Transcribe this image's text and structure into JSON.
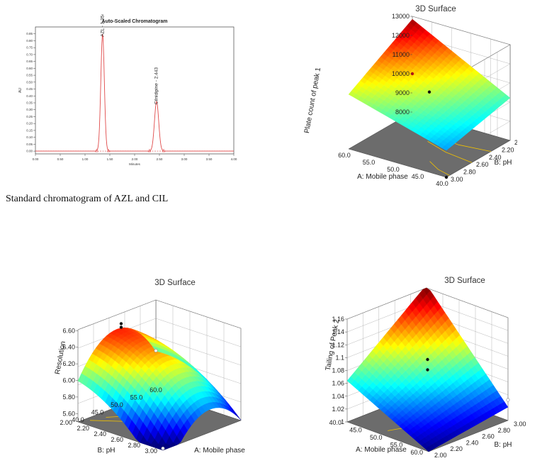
{
  "caption": "Standard chromatogram of AZL and CIL",
  "chart_data": [
    {
      "type": "line",
      "title": "Auto-Scaled Chromatogram",
      "xlabel": "Minutes",
      "ylabel": "AU",
      "xlim": [
        0,
        4
      ],
      "ylim": [
        -0.02,
        0.9
      ],
      "xticks": [
        "0.00",
        "0.50",
        "1.00",
        "1.50",
        "2.00",
        "2.50",
        "3.00",
        "3.50",
        "4.00"
      ],
      "yticks": [
        "0.00",
        "0.05",
        "0.10",
        "0.15",
        "0.20",
        "0.25",
        "0.30",
        "0.35",
        "0.40",
        "0.45",
        "0.50",
        "0.55",
        "0.60",
        "0.65",
        "0.70",
        "0.75",
        "0.80",
        "0.85"
      ],
      "peaks": [
        {
          "label": "AZL - 1.354",
          "x": 1.354,
          "y": 0.85,
          "width": 0.05
        },
        {
          "label": "Cilnidipine - 2.443",
          "x": 2.443,
          "y": 0.36,
          "width": 0.06
        }
      ],
      "line_color": "#e04a4a"
    },
    {
      "type": "surface",
      "title": "3D Surface",
      "zlabel": "Plate count of peak 1",
      "xlabel": "A: Mobile phase",
      "ylabel": "B: pH",
      "zticks": [
        "8000",
        "9000",
        "10000",
        "11000",
        "12000",
        "13000"
      ],
      "xticks": [
        "60.0",
        "55.0",
        "50.0",
        "45.0",
        "40.0"
      ],
      "yticks": [
        "3.00",
        "2.80",
        "2.60",
        "2.40",
        "2.20",
        "2.00"
      ],
      "xlim": [
        40,
        60
      ],
      "ylim": [
        2,
        3
      ],
      "zlim": [
        7500,
        13000
      ],
      "corner_values": {
        "x40_y2": 9500,
        "x60_y2": 12800,
        "x40_y3": 7600,
        "x60_y3": 9800
      },
      "design_points": [
        {
          "x": 50,
          "y": 2.5,
          "z": 10200
        },
        {
          "x": 60,
          "y": 3.0,
          "z": 9700
        },
        {
          "x": 40,
          "y": 3.0,
          "z": 7600
        }
      ]
    },
    {
      "type": "surface",
      "title": "3D Surface",
      "zlabel": "Resolution",
      "xlabel": "A: Mobile phase",
      "ylabel": "B: pH",
      "zticks": [
        "5.60",
        "5.80",
        "6.00",
        "6.20",
        "6.40",
        "6.60"
      ],
      "xticks": [
        "40.0",
        "45.0",
        "50.0",
        "55.0",
        "60.0"
      ],
      "yticks": [
        "2.00",
        "2.20",
        "2.40",
        "2.60",
        "2.80",
        "3.00"
      ],
      "xlim": [
        40,
        60
      ],
      "ylim": [
        2,
        3
      ],
      "zlim": [
        5.5,
        6.6
      ],
      "peak": {
        "x": 50,
        "y": 3.0,
        "z": 6.5
      },
      "design_points": [
        {
          "x": 50,
          "y": 3.0,
          "z": 6.48
        },
        {
          "x": 50,
          "y": 3.0,
          "z": 6.45
        },
        {
          "x": 40,
          "y": 2.0,
          "z": 5.5
        },
        {
          "x": 60,
          "y": 3.0,
          "z": 6.0
        }
      ]
    },
    {
      "type": "surface",
      "title": "3D Surface",
      "zlabel": "Tailing of Peak 2",
      "xlabel": "A: Mobile phase",
      "ylabel": "B: pH",
      "zticks": [
        "1",
        "1.02",
        "1.04",
        "1.06",
        "1.08",
        "1.1",
        "1.12",
        "1.14",
        "1.16"
      ],
      "xticks": [
        "40.0",
        "45.0",
        "50.0",
        "55.0",
        "60.0"
      ],
      "yticks": [
        "2.00",
        "2.20",
        "2.40",
        "2.60",
        "2.80",
        "3.00"
      ],
      "xlim": [
        40,
        60
      ],
      "ylim": [
        2,
        3
      ],
      "zlim": [
        0.98,
        1.16
      ],
      "corner_values": {
        "x40_y3": 1.16,
        "x60_y3": 1.05,
        "x40_y2": 1.04,
        "x60_y2": 0.98
      },
      "design_points": [
        {
          "x": 50,
          "y": 2.5,
          "z": 1.07
        },
        {
          "x": 50,
          "y": 2.5,
          "z": 1.05
        },
        {
          "x": 60,
          "y": 2.0,
          "z": 0.99
        }
      ]
    }
  ],
  "colors": {
    "red": "#e01e1e",
    "axis": "#333333",
    "floor": "#6c6c6c",
    "contour": "#f2c200"
  }
}
